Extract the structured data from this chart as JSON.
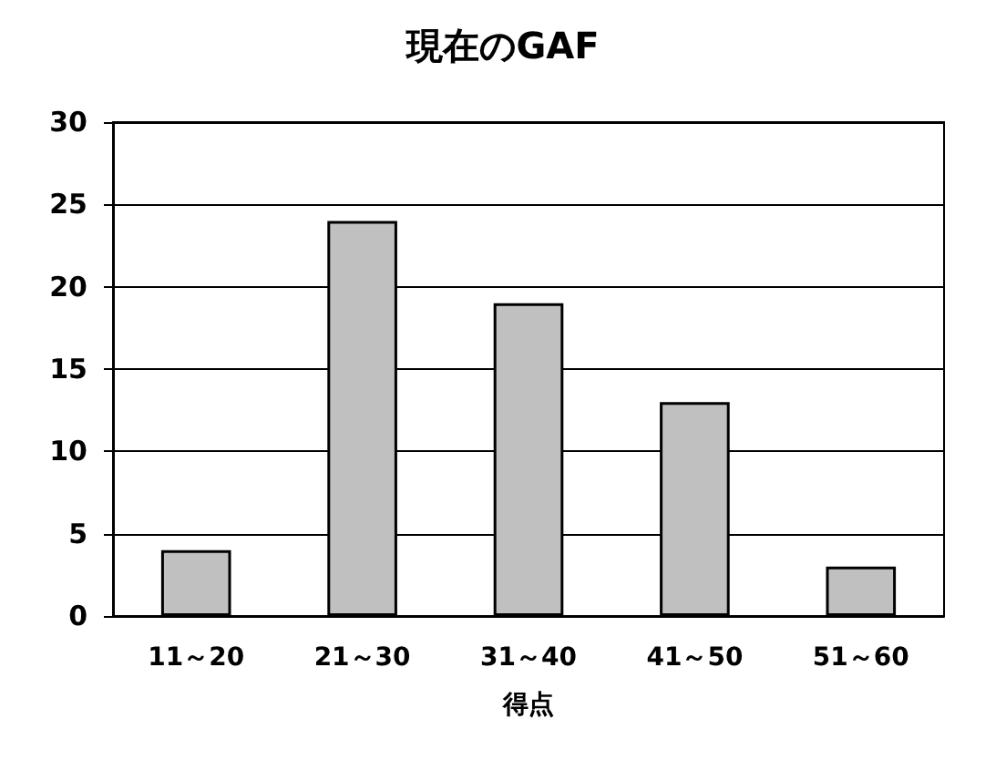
{
  "chart_data": {
    "type": "bar",
    "title": "現在のGAF",
    "xlabel": "得点",
    "categories": [
      "11～20",
      "21～30",
      "31～40",
      "41～50",
      "51～60"
    ],
    "values": [
      4,
      24,
      19,
      13,
      3
    ],
    "color": "#c0c0c0",
    "ylim": [
      0,
      30
    ],
    "yticks": [
      0,
      5,
      10,
      15,
      20,
      25,
      30
    ],
    "grid": "y"
  }
}
